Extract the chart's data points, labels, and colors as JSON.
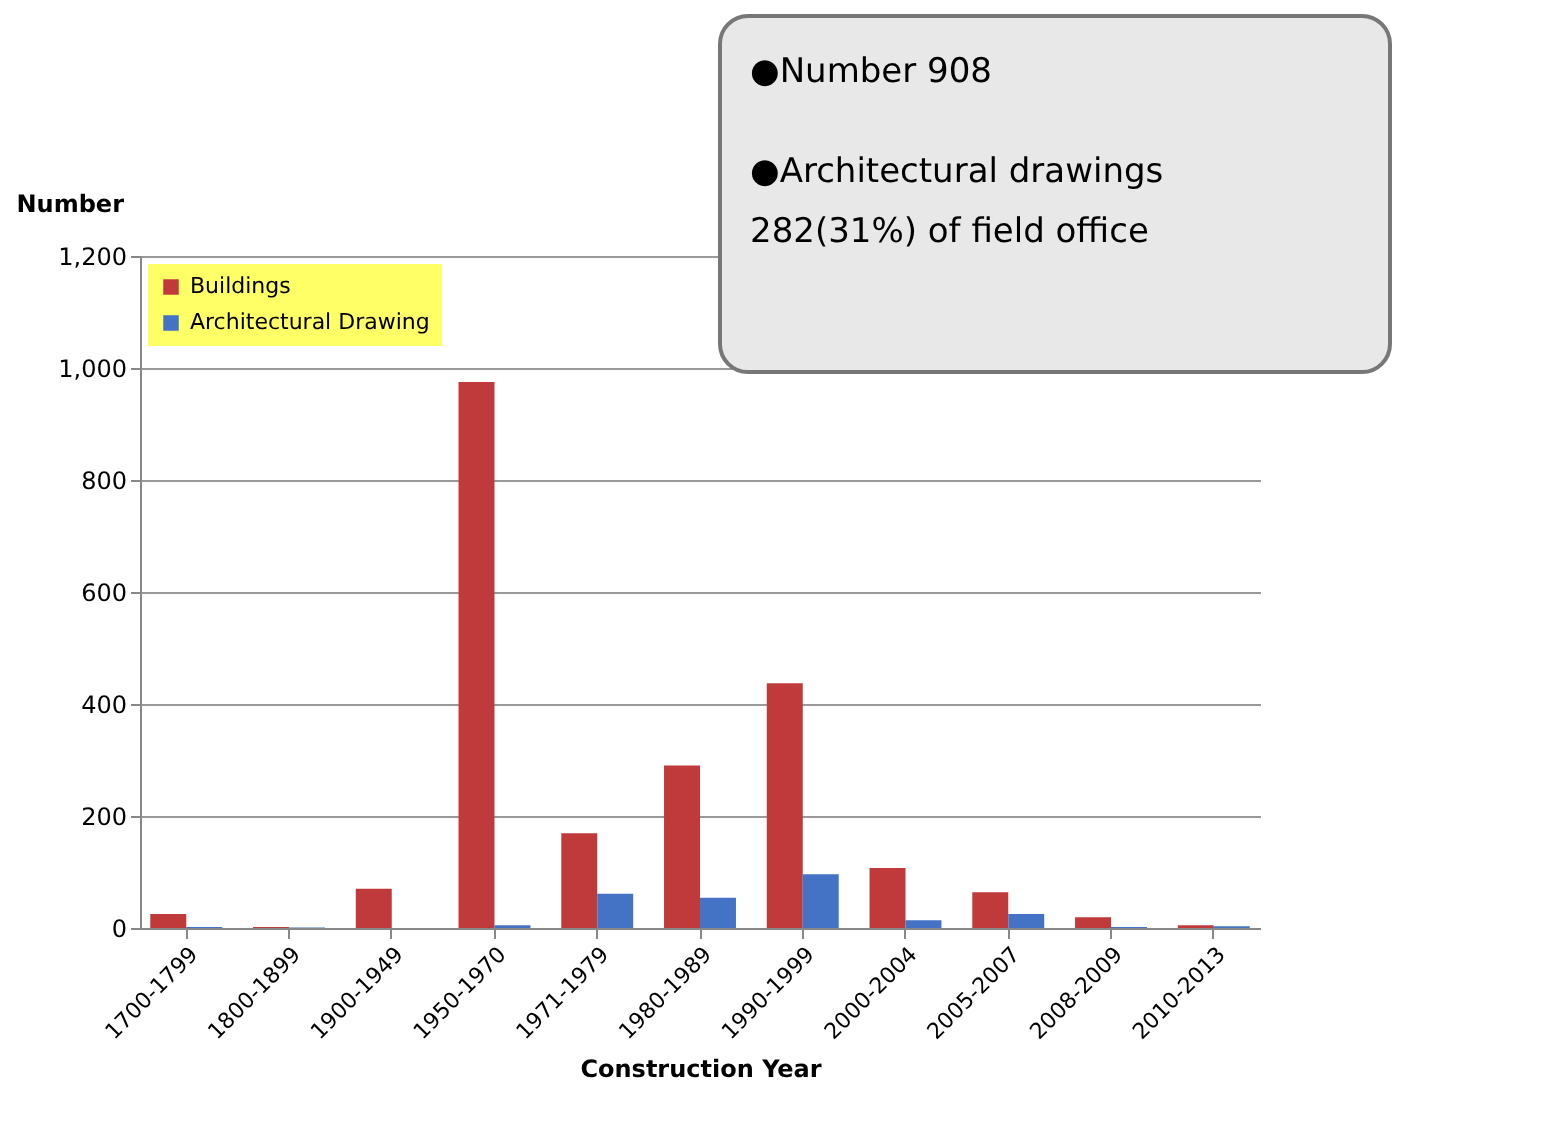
{
  "chart_data": {
    "type": "bar",
    "xlabel": "Construction Year",
    "ylabel": "Number",
    "categories": [
      "1700-1799",
      "1800-1899",
      "1900-1949",
      "1950-1970",
      "1971-1979",
      "1980-1989",
      "1990-1999",
      "2000-2004",
      "2005-2007",
      "2008-2009",
      "2010-2013"
    ],
    "series": [
      {
        "name": "Buildings",
        "color": "#c0393b",
        "values": [
          25,
          2,
          70,
          975,
          169,
          290,
          437,
          107,
          64,
          19,
          5
        ]
      },
      {
        "name": "Architectural Drawing",
        "color": "#4472c4",
        "values": [
          2,
          1,
          0,
          5,
          61,
          54,
          96,
          14,
          25,
          2,
          3
        ]
      }
    ],
    "ylim": [
      0,
      1200
    ],
    "yticks": [
      {
        "value": 0,
        "label": "0"
      },
      {
        "value": 200,
        "label": "200"
      },
      {
        "value": 400,
        "label": "400"
      },
      {
        "value": 600,
        "label": "600"
      },
      {
        "value": 800,
        "label": "800"
      },
      {
        "value": 1000,
        "label": "1,000"
      },
      {
        "value": 1200,
        "label": "1,200"
      }
    ],
    "grid": "y",
    "legend": "top left",
    "annotations": [
      "●Number 908",
      "●Architectural drawings",
      "282(31%) of field office"
    ]
  }
}
